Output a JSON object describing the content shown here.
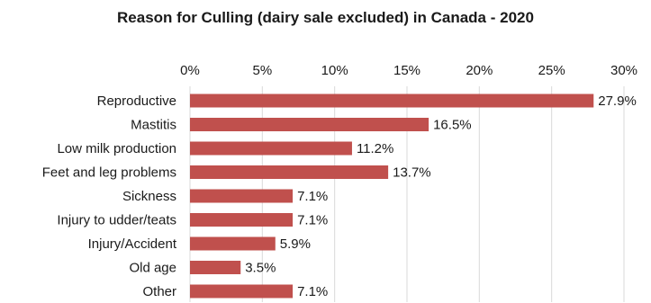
{
  "chart_data": {
    "type": "bar",
    "orientation": "horizontal",
    "title": "Reason for Culling (dairy sale excluded) in Canada - 2020",
    "categories": [
      "Reproductive",
      "Mastitis",
      "Low milk production",
      "Feet and leg problems",
      "Sickness",
      "Injury to udder/teats",
      "Injury/Accident",
      "Old age",
      "Other"
    ],
    "values": [
      27.9,
      16.5,
      11.2,
      13.7,
      7.1,
      7.1,
      5.9,
      3.5,
      7.1
    ],
    "value_labels": [
      "27.9%",
      "16.5%",
      "11.2%",
      "13.7%",
      "7.1%",
      "7.1%",
      "5.9%",
      "3.5%",
      "7.1%"
    ],
    "xlim": [
      0,
      30
    ],
    "x_ticks": [
      0,
      5,
      10,
      15,
      20,
      25,
      30
    ],
    "x_tick_labels": [
      "0%",
      "5%",
      "10%",
      "15%",
      "20%",
      "25%",
      "30%"
    ],
    "x_axis_position": "top",
    "grid": true,
    "xlabel": "",
    "ylabel": "",
    "bar_color": "#c0504d",
    "grid_color": "#d9d9d9"
  }
}
